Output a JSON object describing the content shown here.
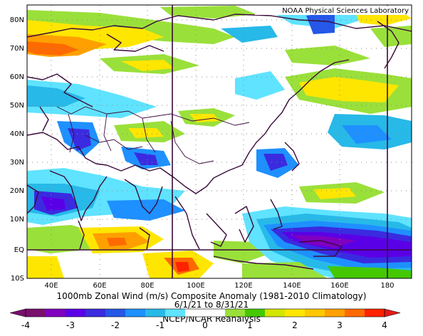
{
  "credit": "NOAA Physical Sciences Laboratory",
  "lat_labels": [
    "80N",
    "70N",
    "60N",
    "50N",
    "40N",
    "30N",
    "20N",
    "10N",
    "EQ",
    "10S"
  ],
  "lon_labels": [
    "40E",
    "60E",
    "80E",
    "100E",
    "120E",
    "140E",
    "160E",
    "180"
  ],
  "title_line1": "1000mb Zonal Wind (m/s) Composite Anomaly (1981-2010 Climatology)",
  "title_line2": "6/1/21  to 8/31/21",
  "title_line3": "NCEP/NCAR Reanalysis",
  "colorbar": {
    "labels": [
      "-4",
      "-3",
      "-2",
      "-1",
      "0",
      "1",
      "2",
      "3",
      "4"
    ],
    "colors": [
      "#7a0f6e",
      "#7f00bf",
      "#5a00e6",
      "#3a2be0",
      "#2557e8",
      "#1e90ff",
      "#27b9e8",
      "#5fe3ff",
      "#ffffff",
      "#ffffff",
      "#9ae03a",
      "#45c800",
      "#d2e600",
      "#ffe600",
      "#ffc800",
      "#ffa000",
      "#ff6a00",
      "#ff2200"
    ],
    "under_color": "#7a0f6e",
    "over_color": "#e61a1a"
  },
  "map": {
    "projection": "cylindrical",
    "lon_range": [
      "30E",
      "190E"
    ],
    "lat_range": [
      "10S",
      "83N"
    ],
    "ticks": [
      "10N-interval latitude lines",
      "20E-interval longitude lines"
    ]
  }
}
